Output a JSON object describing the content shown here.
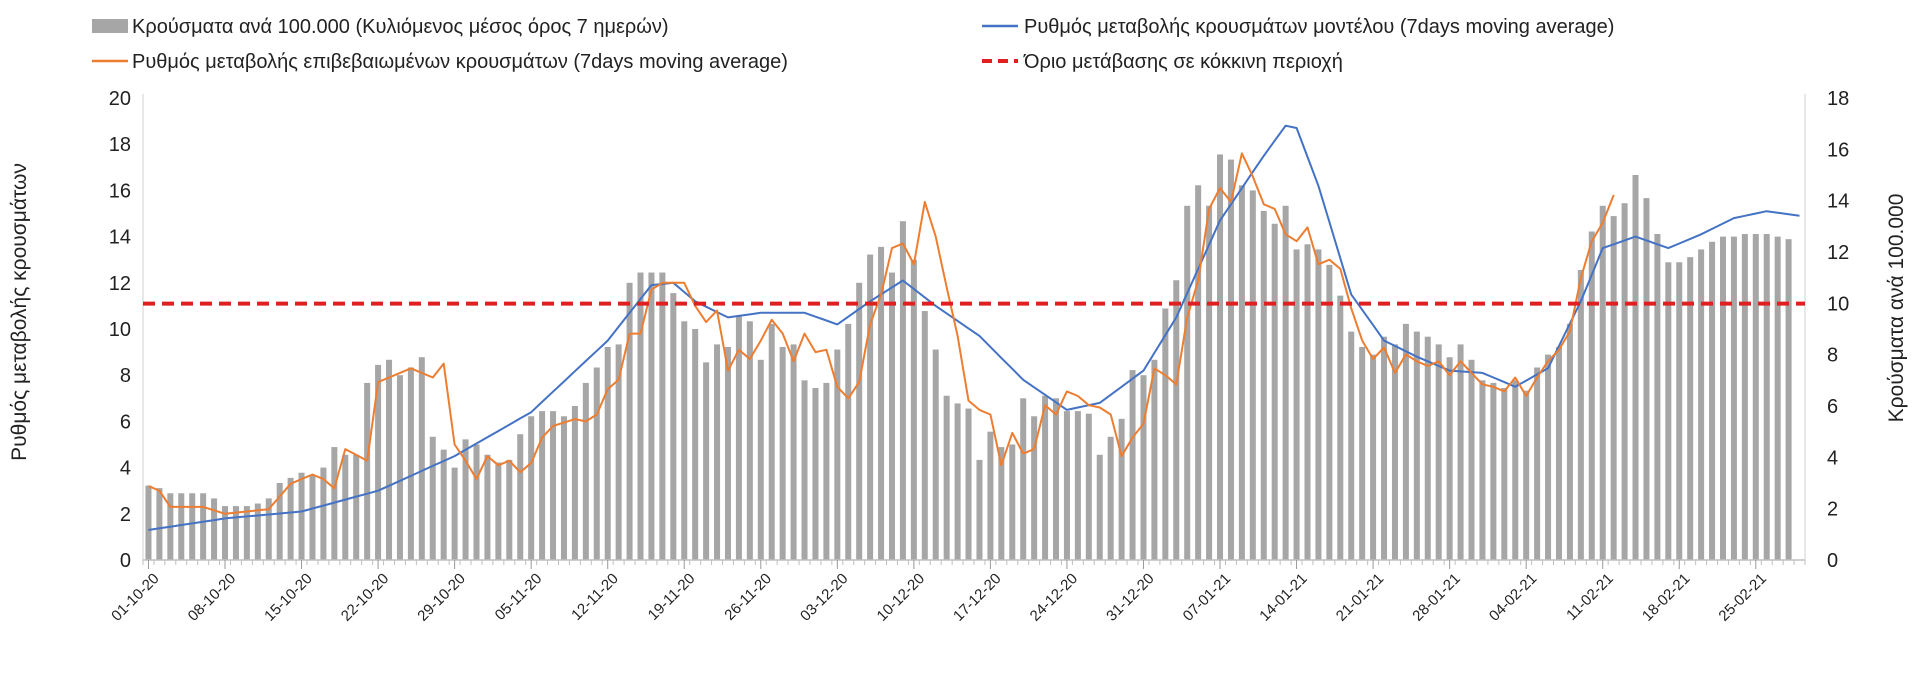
{
  "chart_data": {
    "type": "combo",
    "legend": {
      "placement": "top",
      "items": [
        {
          "key": "bars",
          "label": "Κρούσματα ανά 100.000 (Κυλιόμενος μέσος όρος 7 ημερών)",
          "color": "#a6a6a6",
          "style": "bar"
        },
        {
          "key": "model",
          "label": "Ρυθμός μεταβολής κρουσμάτων μοντέλου (7days moving average)",
          "color": "#4472c4",
          "style": "line"
        },
        {
          "key": "confirmed",
          "label": "Ρυθμός μεταβολής επιβεβαιωμένων κρουσμάτων (7days moving average)",
          "color": "#ed7d31",
          "style": "line"
        },
        {
          "key": "threshold",
          "label": "Όριο μετάβασης σε κόκκινη περιοχή",
          "color": "#e02020",
          "style": "dashed"
        }
      ]
    },
    "left_axis": {
      "title": "Ρυθμός μεταβολής κρουσμάτων",
      "min": 0,
      "max": 20,
      "step": 2,
      "ticks": [
        "0",
        "2",
        "4",
        "6",
        "8",
        "10",
        "12",
        "14",
        "16",
        "18",
        "20"
      ]
    },
    "right_axis": {
      "title": "Κρούσματα ανά 100.000",
      "min": 0,
      "max": 18,
      "step": 2,
      "ticks": [
        "0",
        "2",
        "4",
        "6",
        "8",
        "10",
        "12",
        "14",
        "16",
        "18"
      ]
    },
    "x_axis": {
      "n_days": 152,
      "tick_labels": [
        "01-10-20",
        "08-10-20",
        "15-10-20",
        "22-10-20",
        "29-10-20",
        "05-11-20",
        "12-11-20",
        "19-11-20",
        "26-11-20",
        "03-12-20",
        "10-12-20",
        "17-12-20",
        "24-12-20",
        "31-12-20",
        "07-01-21",
        "14-01-21",
        "21-01-21",
        "28-01-21",
        "04-02-21",
        "11-02-21",
        "18-02-21",
        "25-02-21"
      ],
      "tick_every_days": 7
    },
    "bars_anchors": [
      [
        0,
        2.9
      ],
      [
        1,
        2.8
      ],
      [
        2,
        2.6
      ],
      [
        3,
        2.6
      ],
      [
        4,
        2.6
      ],
      [
        5,
        2.6
      ],
      [
        6,
        2.4
      ],
      [
        7,
        2.1
      ],
      [
        8,
        2.1
      ],
      [
        9,
        2.1
      ],
      [
        10,
        2.2
      ],
      [
        11,
        2.4
      ],
      [
        12,
        3.0
      ],
      [
        13,
        3.2
      ],
      [
        14,
        3.4
      ],
      [
        15,
        3.3
      ],
      [
        16,
        3.6
      ],
      [
        17,
        4.4
      ],
      [
        18,
        4.1
      ],
      [
        19,
        4.1
      ],
      [
        20,
        6.9
      ],
      [
        21,
        7.6
      ],
      [
        22,
        7.8
      ],
      [
        23,
        7.2
      ],
      [
        24,
        7.5
      ],
      [
        25,
        7.9
      ],
      [
        26,
        4.8
      ],
      [
        27,
        4.3
      ],
      [
        28,
        3.6
      ],
      [
        29,
        4.7
      ],
      [
        30,
        4.5
      ],
      [
        31,
        4.1
      ],
      [
        32,
        3.8
      ],
      [
        33,
        3.9
      ],
      [
        34,
        4.9
      ],
      [
        35,
        5.6
      ],
      [
        36,
        5.8
      ],
      [
        37,
        5.8
      ],
      [
        38,
        5.6
      ],
      [
        39,
        6.0
      ],
      [
        40,
        6.9
      ],
      [
        41,
        7.5
      ],
      [
        42,
        8.3
      ],
      [
        43,
        8.4
      ],
      [
        44,
        10.8
      ],
      [
        45,
        11.2
      ],
      [
        46,
        11.2
      ],
      [
        47,
        11.2
      ],
      [
        48,
        10.4
      ],
      [
        49,
        9.3
      ],
      [
        50,
        9.0
      ],
      [
        51,
        7.7
      ],
      [
        52,
        8.4
      ],
      [
        53,
        8.3
      ],
      [
        54,
        9.5
      ],
      [
        55,
        9.3
      ],
      [
        56,
        7.8
      ],
      [
        57,
        9.2
      ],
      [
        58,
        8.3
      ],
      [
        59,
        8.4
      ],
      [
        60,
        7.0
      ],
      [
        61,
        6.7
      ],
      [
        62,
        6.9
      ],
      [
        63,
        8.2
      ],
      [
        64,
        9.2
      ],
      [
        65,
        10.8
      ],
      [
        66,
        11.9
      ],
      [
        67,
        12.2
      ],
      [
        68,
        11.2
      ],
      [
        69,
        13.2
      ],
      [
        70,
        11.7
      ],
      [
        71,
        9.7
      ],
      [
        72,
        8.2
      ],
      [
        73,
        6.4
      ],
      [
        74,
        6.1
      ],
      [
        75,
        5.9
      ],
      [
        76,
        3.9
      ],
      [
        77,
        5.0
      ],
      [
        78,
        4.4
      ],
      [
        79,
        4.5
      ],
      [
        80,
        6.3
      ],
      [
        81,
        5.6
      ],
      [
        82,
        6.4
      ],
      [
        83,
        6.3
      ],
      [
        84,
        5.8
      ],
      [
        85,
        5.8
      ],
      [
        86,
        5.7
      ],
      [
        87,
        4.1
      ],
      [
        88,
        4.8
      ],
      [
        89,
        5.5
      ],
      [
        90,
        7.4
      ],
      [
        91,
        7.2
      ],
      [
        92,
        7.8
      ],
      [
        93,
        9.8
      ],
      [
        94,
        10.9
      ],
      [
        95,
        13.8
      ],
      [
        96,
        14.6
      ],
      [
        97,
        13.8
      ],
      [
        98,
        15.8
      ],
      [
        99,
        15.6
      ],
      [
        100,
        14.6
      ],
      [
        101,
        14.4
      ],
      [
        102,
        13.6
      ],
      [
        103,
        13.1
      ],
      [
        104,
        13.8
      ],
      [
        105,
        12.1
      ],
      [
        106,
        12.3
      ],
      [
        107,
        12.1
      ],
      [
        108,
        11.5
      ],
      [
        109,
        10.3
      ],
      [
        110,
        8.9
      ],
      [
        111,
        8.3
      ],
      [
        112,
        8.0
      ],
      [
        113,
        8.7
      ],
      [
        114,
        8.4
      ],
      [
        115,
        9.2
      ],
      [
        116,
        8.9
      ],
      [
        117,
        8.7
      ],
      [
        118,
        8.4
      ],
      [
        119,
        7.9
      ],
      [
        120,
        8.4
      ],
      [
        121,
        7.8
      ],
      [
        122,
        7.0
      ],
      [
        123,
        6.9
      ],
      [
        124,
        6.7
      ],
      [
        125,
        7.0
      ],
      [
        126,
        6.6
      ],
      [
        127,
        7.5
      ],
      [
        128,
        8.0
      ],
      [
        129,
        8.3
      ],
      [
        130,
        9.2
      ],
      [
        131,
        11.3
      ],
      [
        132,
        12.8
      ],
      [
        133,
        13.8
      ],
      [
        134,
        13.4
      ],
      [
        135,
        13.9
      ],
      [
        136,
        15.0
      ],
      [
        137,
        14.1
      ],
      [
        138,
        12.7
      ],
      [
        139,
        11.6
      ],
      [
        140,
        11.6
      ],
      [
        141,
        11.8
      ],
      [
        142,
        12.1
      ],
      [
        143,
        12.4
      ],
      [
        144,
        12.6
      ],
      [
        145,
        12.6
      ],
      [
        146,
        12.7
      ],
      [
        147,
        12.7
      ],
      [
        148,
        12.7
      ],
      [
        149,
        12.6
      ],
      [
        150,
        12.5
      ]
    ],
    "model_anchors": [
      [
        0,
        1.3
      ],
      [
        7,
        1.8
      ],
      [
        14,
        2.1
      ],
      [
        21,
        3.0
      ],
      [
        28,
        4.5
      ],
      [
        35,
        6.4
      ],
      [
        42,
        9.5
      ],
      [
        46,
        11.9
      ],
      [
        48,
        12.0
      ],
      [
        50,
        11.2
      ],
      [
        53,
        10.5
      ],
      [
        56,
        10.7
      ],
      [
        60,
        10.7
      ],
      [
        63,
        10.2
      ],
      [
        66,
        11.2
      ],
      [
        69,
        12.1
      ],
      [
        72,
        11.0
      ],
      [
        76,
        9.7
      ],
      [
        80,
        7.8
      ],
      [
        84,
        6.5
      ],
      [
        87,
        6.8
      ],
      [
        91,
        8.2
      ],
      [
        94,
        10.5
      ],
      [
        98,
        14.7
      ],
      [
        102,
        17.5
      ],
      [
        104,
        18.8
      ],
      [
        105,
        18.7
      ],
      [
        107,
        16.2
      ],
      [
        110,
        11.5
      ],
      [
        113,
        9.5
      ],
      [
        116,
        8.8
      ],
      [
        119,
        8.2
      ],
      [
        122,
        8.1
      ],
      [
        125,
        7.5
      ],
      [
        128,
        8.3
      ],
      [
        131,
        11.2
      ],
      [
        133,
        13.5
      ],
      [
        136,
        14.0
      ],
      [
        139,
        13.5
      ],
      [
        142,
        14.1
      ],
      [
        145,
        14.8
      ],
      [
        148,
        15.1
      ],
      [
        151,
        14.9
      ]
    ],
    "confirmed_anchors": [
      [
        0,
        3.2
      ],
      [
        1,
        3.0
      ],
      [
        2,
        2.3
      ],
      [
        5,
        2.3
      ],
      [
        7,
        2.0
      ],
      [
        9,
        2.1
      ],
      [
        11,
        2.2
      ],
      [
        13,
        3.3
      ],
      [
        15,
        3.7
      ],
      [
        16,
        3.5
      ],
      [
        17,
        3.1
      ],
      [
        18,
        4.8
      ],
      [
        20,
        4.3
      ],
      [
        21,
        7.7
      ],
      [
        22,
        7.9
      ],
      [
        24,
        8.3
      ],
      [
        26,
        7.9
      ],
      [
        27,
        8.5
      ],
      [
        28,
        5.0
      ],
      [
        29,
        4.3
      ],
      [
        30,
        3.5
      ],
      [
        31,
        4.5
      ],
      [
        32,
        4.1
      ],
      [
        33,
        4.3
      ],
      [
        34,
        3.8
      ],
      [
        35,
        4.2
      ],
      [
        36,
        5.3
      ],
      [
        37,
        5.8
      ],
      [
        39,
        6.1
      ],
      [
        40,
        6.0
      ],
      [
        41,
        6.3
      ],
      [
        42,
        7.4
      ],
      [
        43,
        7.8
      ],
      [
        44,
        9.8
      ],
      [
        45,
        9.8
      ],
      [
        46,
        11.7
      ],
      [
        47,
        12.0
      ],
      [
        49,
        12.0
      ],
      [
        50,
        11.0
      ],
      [
        51,
        10.3
      ],
      [
        52,
        10.8
      ],
      [
        53,
        8.2
      ],
      [
        54,
        9.1
      ],
      [
        55,
        8.7
      ],
      [
        56,
        9.5
      ],
      [
        57,
        10.4
      ],
      [
        58,
        9.8
      ],
      [
        59,
        8.6
      ],
      [
        60,
        9.8
      ],
      [
        61,
        9.0
      ],
      [
        62,
        9.1
      ],
      [
        63,
        7.5
      ],
      [
        64,
        7.0
      ],
      [
        65,
        7.7
      ],
      [
        66,
        10.2
      ],
      [
        67,
        11.5
      ],
      [
        68,
        13.5
      ],
      [
        69,
        13.7
      ],
      [
        70,
        12.8
      ],
      [
        71,
        15.5
      ],
      [
        72,
        14.0
      ],
      [
        73,
        11.8
      ],
      [
        74,
        9.7
      ],
      [
        75,
        6.9
      ],
      [
        76,
        6.5
      ],
      [
        77,
        6.3
      ],
      [
        78,
        4.1
      ],
      [
        79,
        5.5
      ],
      [
        80,
        4.6
      ],
      [
        81,
        4.8
      ],
      [
        82,
        6.7
      ],
      [
        83,
        6.3
      ],
      [
        84,
        7.3
      ],
      [
        85,
        7.1
      ],
      [
        86,
        6.7
      ],
      [
        87,
        6.6
      ],
      [
        88,
        6.3
      ],
      [
        89,
        4.5
      ],
      [
        90,
        5.3
      ],
      [
        91,
        5.9
      ],
      [
        92,
        8.3
      ],
      [
        93,
        8.0
      ],
      [
        94,
        7.6
      ],
      [
        95,
        10.5
      ],
      [
        96,
        12.1
      ],
      [
        97,
        15.2
      ],
      [
        98,
        16.1
      ],
      [
        99,
        15.5
      ],
      [
        100,
        17.6
      ],
      [
        101,
        16.6
      ],
      [
        102,
        15.4
      ],
      [
        103,
        15.2
      ],
      [
        104,
        14.1
      ],
      [
        105,
        13.8
      ],
      [
        106,
        14.4
      ],
      [
        107,
        12.8
      ],
      [
        108,
        13.0
      ],
      [
        109,
        12.6
      ],
      [
        110,
        10.9
      ],
      [
        111,
        9.5
      ],
      [
        112,
        8.7
      ],
      [
        113,
        9.2
      ],
      [
        114,
        8.1
      ],
      [
        115,
        8.9
      ],
      [
        116,
        8.6
      ],
      [
        117,
        8.4
      ],
      [
        118,
        8.6
      ],
      [
        119,
        8.0
      ],
      [
        120,
        8.6
      ],
      [
        121,
        8.1
      ],
      [
        122,
        7.6
      ],
      [
        123,
        7.5
      ],
      [
        124,
        7.3
      ],
      [
        125,
        7.9
      ],
      [
        126,
        7.1
      ],
      [
        127,
        7.9
      ],
      [
        128,
        8.6
      ],
      [
        129,
        9.1
      ],
      [
        130,
        9.9
      ],
      [
        131,
        12.2
      ],
      [
        132,
        13.8
      ],
      [
        133,
        14.6
      ],
      [
        134,
        15.8
      ]
    ],
    "threshold_value": 11.1
  }
}
